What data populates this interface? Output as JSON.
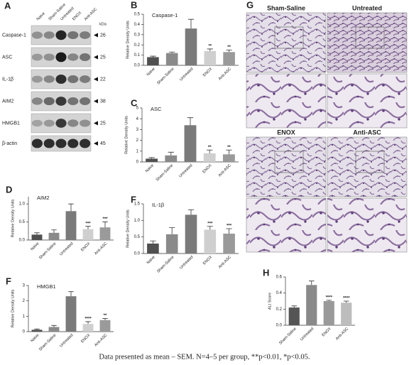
{
  "chart_data": [
    {
      "type": "bar",
      "panel": "B",
      "title": "Caspase-1",
      "y_label": "Relative Density Units",
      "categories": [
        "Naive",
        "Sham-Saline",
        "Untreated",
        "ENOX",
        "Anti-ASC"
      ],
      "values": [
        0.08,
        0.12,
        0.36,
        0.14,
        0.13
      ],
      "errors": [
        0.01,
        0.01,
        0.09,
        0.02,
        0.02
      ],
      "significance": [
        null,
        null,
        null,
        "**",
        "**"
      ],
      "colors": [
        "#505050",
        "#8a8a8a",
        "#7a7a7a",
        "#cfcfcf",
        "#9a9a9a"
      ],
      "ylim": [
        0,
        0.5
      ],
      "yticks": [
        {
          "value": 0,
          "label": "0.0"
        },
        0.1,
        0.2,
        0.3,
        0.4,
        0.5
      ]
    },
    {
      "type": "bar",
      "panel": "C",
      "title": "ASC",
      "y_label": "Relative Density Units",
      "categories": [
        "Naive",
        "Sham-Saline",
        "Untreated",
        "ENOX",
        "Anti-ASC"
      ],
      "values": [
        0.3,
        0.6,
        3.4,
        0.8,
        0.7
      ],
      "errors": [
        0.1,
        0.3,
        0.7,
        0.3,
        0.4
      ],
      "significance": [
        null,
        null,
        null,
        "**",
        "**"
      ],
      "colors": [
        "#505050",
        "#8a8a8a",
        "#7a7a7a",
        "#cfcfcf",
        "#9a9a9a"
      ],
      "ylim": [
        0,
        5
      ],
      "yticks": [
        0,
        1,
        2,
        3,
        4,
        5
      ]
    },
    {
      "type": "bar",
      "panel": "D",
      "title": "AIM2",
      "y_label": "Relative Density Units",
      "categories": [
        "Naive",
        "Sham-Saline",
        "Untreated",
        "ENOX",
        "Anti-ASC"
      ],
      "values": [
        0.15,
        0.2,
        0.8,
        0.3,
        0.35
      ],
      "errors": [
        0.05,
        0.08,
        0.2,
        0.08,
        0.15
      ],
      "significance": [
        null,
        null,
        null,
        "***",
        "***"
      ],
      "colors": [
        "#505050",
        "#8a8a8a",
        "#7a7a7a",
        "#cfcfcf",
        "#9a9a9a"
      ],
      "ylim": [
        0,
        1.2
      ],
      "yticks": [
        {
          "value": 0,
          "label": "0.0"
        },
        0.5,
        {
          "value": 1,
          "label": "1.0"
        }
      ]
    },
    {
      "type": "bar",
      "panel": "F",
      "title": "IL-1β",
      "y_label": "Relative Density Units",
      "categories": [
        "Naive",
        "Sham-Saline",
        "Untreated",
        "ENOX",
        "Anti-ASC"
      ],
      "values": [
        0.3,
        0.58,
        1.17,
        0.72,
        0.6
      ],
      "errors": [
        0.08,
        0.2,
        0.15,
        0.1,
        0.15
      ],
      "significance": [
        null,
        null,
        null,
        "***",
        "***"
      ],
      "colors": [
        "#505050",
        "#8a8a8a",
        "#7a7a7a",
        "#cfcfcf",
        "#9a9a9a"
      ],
      "ylim": [
        0,
        1.5
      ],
      "yticks": [
        {
          "value": 0,
          "label": "0.0"
        },
        0.5,
        {
          "value": 1,
          "label": "1.0"
        },
        1.5
      ]
    },
    {
      "type": "bar",
      "panel": "F",
      "title": "HMGB1",
      "y_label": "Relative Density Units",
      "categories": [
        "Naive",
        "Sham-Saline",
        "Untreated",
        "ENOX",
        "Anti-ASC"
      ],
      "values": [
        0.12,
        0.3,
        2.3,
        0.5,
        0.75
      ],
      "errors": [
        0.05,
        0.1,
        0.3,
        0.15,
        0.1
      ],
      "significance": [
        null,
        null,
        null,
        "****",
        "**"
      ],
      "colors": [
        "#505050",
        "#8a8a8a",
        "#7a7a7a",
        "#cfcfcf",
        "#9a9a9a"
      ],
      "ylim": [
        0,
        3
      ],
      "yticks": [
        0,
        1,
        2,
        3
      ]
    },
    {
      "type": "bar",
      "panel": "H",
      "y_label": "ALI Score",
      "categories": [
        "Sham-Saline",
        "Untreated",
        "ENOX",
        "Anti-ASC"
      ],
      "values": [
        0.22,
        0.5,
        0.3,
        0.28
      ],
      "errors": [
        0.02,
        0.05,
        0.01,
        0.02
      ],
      "significance": [
        null,
        null,
        "****",
        "****"
      ],
      "colors": [
        "#555555",
        "#8a8a8a",
        "#9a9a9a",
        "#bdbdbd"
      ],
      "ylim": [
        0,
        0.6
      ],
      "yticks": [
        {
          "value": 0,
          "label": "0.0"
        },
        0.2,
        0.4,
        0.6
      ]
    }
  ],
  "blot": {
    "panel": "A",
    "unit": "kDa",
    "lanes": [
      "Naive",
      "Sham-Saline",
      "Untreated",
      "ENOX",
      "Anti-ASC"
    ],
    "rows": [
      {
        "label": "Caspase-1",
        "kda": 26
      },
      {
        "label": "ASC",
        "kda": 25
      },
      {
        "label": "IL-1β",
        "kda": 22
      },
      {
        "label": "AIM2",
        "kda": 38
      },
      {
        "label": "HMGB1",
        "kda": 25
      },
      {
        "label": "β-actin",
        "kda": 45
      }
    ]
  },
  "histology": {
    "panel": "G",
    "labels": [
      "Sham-Saline",
      "Untreated",
      "ENOX",
      "Anti-ASC"
    ]
  },
  "caption": "Data presented as mean – SEM. N=4–5 per group, **p<0.01, *p<0.05."
}
